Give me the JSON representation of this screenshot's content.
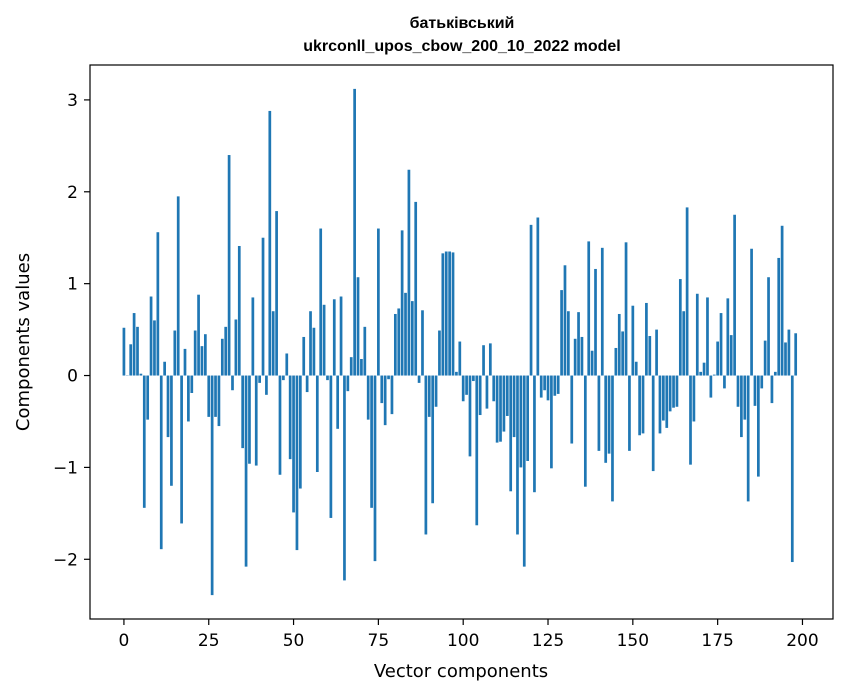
{
  "chart_data": {
    "type": "bar",
    "title_line1": "батьківський",
    "title_line2": "ukrconll_upos_cbow_200_10_2022 model",
    "xlabel": "Vector components",
    "ylabel": "Components values",
    "xlim": [
      -10,
      209
    ],
    "ylim": [
      -2.65,
      3.38
    ],
    "xticks": [
      0,
      25,
      50,
      75,
      100,
      125,
      150,
      175,
      200
    ],
    "xtick_labels": [
      "0",
      "25",
      "50",
      "75",
      "100",
      "125",
      "150",
      "175",
      "200"
    ],
    "yticks": [
      -2,
      -1,
      0,
      1,
      2,
      3
    ],
    "ytick_labels": [
      "−2",
      "−1",
      "0",
      "1",
      "2",
      "3"
    ],
    "bar_color": "#1f77b4",
    "values": [
      0.52,
      0.0,
      0.34,
      0.68,
      0.53,
      0.02,
      -1.44,
      -0.48,
      0.86,
      0.6,
      1.56,
      -1.89,
      0.15,
      -0.67,
      -1.2,
      0.49,
      1.95,
      -1.61,
      0.29,
      -0.5,
      -0.19,
      0.49,
      0.88,
      0.32,
      0.45,
      -0.45,
      -2.39,
      -0.45,
      -0.55,
      0.4,
      0.53,
      2.4,
      -0.16,
      0.61,
      1.41,
      -0.79,
      -2.08,
      -0.96,
      0.85,
      -0.98,
      -0.08,
      1.5,
      -0.21,
      2.88,
      0.7,
      1.79,
      -1.08,
      -0.05,
      0.24,
      -0.91,
      -1.49,
      -1.9,
      -1.23,
      0.42,
      -0.18,
      0.7,
      0.52,
      -1.05,
      1.6,
      0.77,
      -0.05,
      -1.55,
      0.83,
      -0.58,
      0.86,
      -2.23,
      -0.17,
      0.2,
      3.12,
      1.07,
      0.18,
      0.53,
      -0.48,
      -1.44,
      -2.02,
      1.6,
      -0.3,
      -0.54,
      -0.04,
      -0.42,
      0.67,
      0.73,
      1.58,
      0.9,
      2.24,
      0.81,
      1.89,
      -0.08,
      0.71,
      -1.73,
      -0.45,
      -1.39,
      -0.34,
      0.49,
      1.33,
      1.35,
      1.35,
      1.34,
      0.04,
      0.37,
      -0.28,
      -0.21,
      -0.88,
      -0.06,
      -1.63,
      -0.43,
      0.33,
      -0.36,
      0.35,
      -0.28,
      -0.73,
      -0.72,
      -0.61,
      -0.44,
      -1.26,
      -0.67,
      -1.73,
      -1.0,
      -2.08,
      -0.93,
      1.64,
      -1.27,
      1.72,
      -0.24,
      -0.16,
      -0.27,
      -1.01,
      -0.22,
      -0.2,
      0.93,
      1.2,
      0.7,
      -0.74,
      0.4,
      0.69,
      0.42,
      -1.21,
      1.46,
      0.27,
      1.16,
      -0.82,
      1.39,
      -0.95,
      -0.85,
      -1.37,
      0.3,
      0.67,
      0.48,
      1.45,
      -0.82,
      0.76,
      0.15,
      -0.65,
      -0.63,
      0.79,
      0.43,
      -1.04,
      0.5,
      -0.63,
      -0.49,
      -0.57,
      -0.39,
      -0.35,
      -0.34,
      1.05,
      0.7,
      1.83,
      -0.97,
      -0.5,
      0.89,
      0.04,
      0.14,
      0.85,
      -0.24,
      0.01,
      0.37,
      0.68,
      -0.14,
      0.84,
      0.44,
      1.75,
      -0.34,
      -0.67,
      -0.48,
      -1.37,
      1.38,
      -0.33,
      -1.1,
      -0.14,
      0.38,
      1.07,
      -0.3,
      0.04,
      1.28,
      1.63,
      0.36,
      0.5,
      -2.03,
      0.46
    ]
  }
}
